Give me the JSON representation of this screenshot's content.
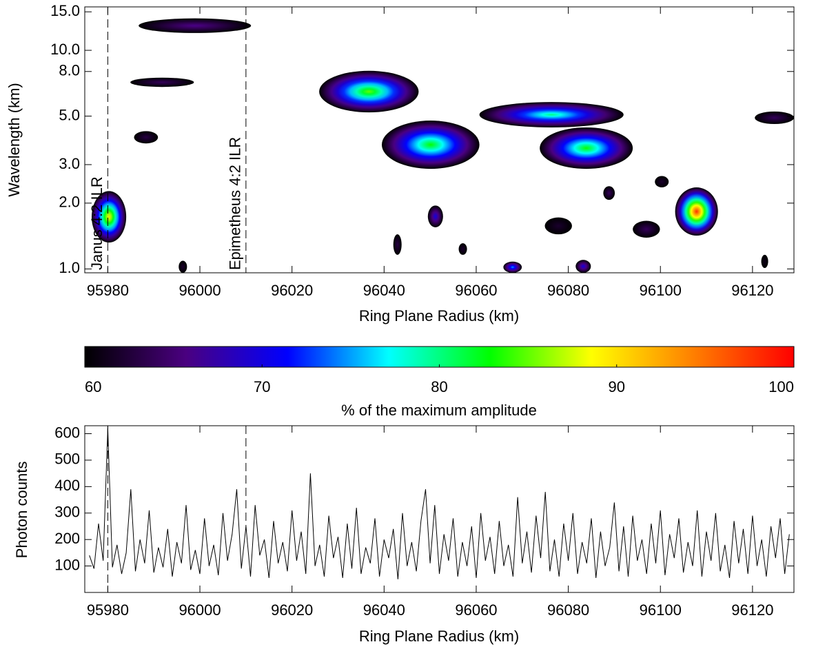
{
  "chart_data": [
    {
      "type": "contour",
      "xlabel": "Ring Plane Radius (km)",
      "ylabel": "Wavelength (km)",
      "xlim": [
        95975,
        96129
      ],
      "xticks": [
        95980,
        96000,
        96020,
        96040,
        96060,
        96080,
        96100,
        96120
      ],
      "ylim": [
        0.96,
        15.8
      ],
      "log_y": true,
      "yticks": [
        {
          "value": 1,
          "label": "1.0"
        },
        {
          "value": 2,
          "label": "2.0"
        },
        {
          "value": 3,
          "label": "3.0"
        },
        {
          "value": 5,
          "label": "5.0"
        },
        {
          "value": 8,
          "label": "8.0"
        },
        {
          "value": 10,
          "label": "10.0"
        },
        {
          "value": 15,
          "label": "15.0"
        }
      ],
      "vlines": [
        {
          "x": 95980,
          "label": "Janus 4:2 ILR"
        },
        {
          "x": 96010,
          "label": "Epimetheus 4:2 ILR"
        }
      ],
      "regions": [
        {
          "x": [
            95986.7,
            96011.1
          ],
          "y": [
            12.0,
            14.0
          ],
          "peak": 66
        },
        {
          "x": [
            95984.9,
            95998.7
          ],
          "y": [
            6.8,
            7.5
          ],
          "peak": 64
        },
        {
          "x": [
            95985.7,
            95990.9
          ],
          "y": [
            3.75,
            4.27
          ],
          "peak": 63
        },
        {
          "x": [
            95976.5,
            95984.0
          ],
          "y": [
            1.32,
            2.27
          ],
          "peak": 90
        },
        {
          "x": [
            95995.4,
            95997.2
          ],
          "y": [
            0.96,
            1.09
          ],
          "peak": 62
        },
        {
          "x": [
            96025.9,
            96047.5
          ],
          "y": [
            5.2,
            8.06
          ],
          "peak": 85
        },
        {
          "x": [
            96039.5,
            96060.7
          ],
          "y": [
            2.87,
            4.77
          ],
          "peak": 83
        },
        {
          "x": [
            96060.7,
            96092.0
          ],
          "y": [
            4.44,
            5.8
          ],
          "peak": 80
        },
        {
          "x": [
            96073.8,
            96094.0
          ],
          "y": [
            2.87,
            4.44
          ],
          "peak": 83
        },
        {
          "x": [
            96120.5,
            96129.0
          ],
          "y": [
            4.6,
            5.25
          ],
          "peak": 64
        },
        {
          "x": [
            96103.2,
            96112.5
          ],
          "y": [
            1.42,
            2.36
          ],
          "peak": 98
        },
        {
          "x": [
            96049.5,
            96052.8
          ],
          "y": [
            1.55,
            1.95
          ],
          "peak": 70
        },
        {
          "x": [
            96042.0,
            96043.8
          ],
          "y": [
            1.16,
            1.44
          ],
          "peak": 63
        },
        {
          "x": [
            96056.2,
            96058.0
          ],
          "y": [
            1.16,
            1.31
          ],
          "peak": 62
        },
        {
          "x": [
            96065.9,
            96069.9
          ],
          "y": [
            0.96,
            1.08
          ],
          "peak": 75
        },
        {
          "x": [
            96081.6,
            96084.9
          ],
          "y": [
            0.96,
            1.1
          ],
          "peak": 70
        },
        {
          "x": [
            96074.9,
            96080.8
          ],
          "y": [
            1.44,
            1.72
          ],
          "peak": 62
        },
        {
          "x": [
            96087.6,
            96090.1
          ],
          "y": [
            2.07,
            2.39
          ],
          "peak": 64
        },
        {
          "x": [
            96094.0,
            96099.9
          ],
          "y": [
            1.39,
            1.66
          ],
          "peak": 64
        },
        {
          "x": [
            96098.8,
            96101.8
          ],
          "y": [
            2.36,
            2.66
          ],
          "peak": 62
        },
        {
          "x": [
            96121.9,
            96123.4
          ],
          "y": [
            1.01,
            1.16
          ],
          "peak": 61
        }
      ],
      "colorbar": {
        "zlim": [
          60,
          100
        ],
        "zticks": [
          60,
          70,
          80,
          90,
          100
        ],
        "zlabel": "% of the maximum amplitude",
        "colormap": [
          "#000000",
          "#4a0080",
          "#0000ff",
          "#00ffff",
          "#00ff00",
          "#ffff00",
          "#ff8000",
          "#ff0000"
        ]
      }
    },
    {
      "type": "line",
      "color": "#000000",
      "xlabel": "Ring Plane Radius (km)",
      "ylabel": "Photon counts",
      "xlim": [
        95975,
        96129
      ],
      "xticks": [
        95980,
        96000,
        96020,
        96040,
        96060,
        96080,
        96100,
        96120
      ],
      "ylim": [
        0,
        630
      ],
      "yticks": [
        100,
        200,
        300,
        400,
        500,
        600
      ],
      "vlines": [
        95980,
        96010
      ],
      "x": [
        95976,
        95977,
        95978,
        95979,
        95980,
        95981,
        95982,
        95983,
        95984,
        95985,
        95986,
        95987,
        95988,
        95989,
        95990,
        95991,
        95992,
        95993,
        95994,
        95995,
        95996,
        95997,
        95998,
        95999,
        96000,
        96001,
        96002,
        96003,
        96004,
        96005,
        96006,
        96007,
        96008,
        96009,
        96010,
        96011,
        96012,
        96013,
        96014,
        96015,
        96016,
        96017,
        96018,
        96019,
        96020,
        96021,
        96022,
        96023,
        96024,
        96025,
        96026,
        96027,
        96028,
        96029,
        96030,
        96031,
        96032,
        96033,
        96034,
        96035,
        96036,
        96037,
        96038,
        96039,
        96040,
        96041,
        96042,
        96043,
        96044,
        96045,
        96046,
        96047,
        96048,
        96049,
        96050,
        96051,
        96052,
        96053,
        96054,
        96055,
        96056,
        96057,
        96058,
        96059,
        96060,
        96061,
        96062,
        96063,
        96064,
        96065,
        96066,
        96067,
        96068,
        96069,
        96070,
        96071,
        96072,
        96073,
        96074,
        96075,
        96076,
        96077,
        96078,
        96079,
        96080,
        96081,
        96082,
        96083,
        96084,
        96085,
        96086,
        96087,
        96088,
        96089,
        96090,
        96091,
        96092,
        96093,
        96094,
        96095,
        96096,
        96097,
        96098,
        96099,
        96100,
        96101,
        96102,
        96103,
        96104,
        96105,
        96106,
        96107,
        96108,
        96109,
        96110,
        96111,
        96112,
        96113,
        96114,
        96115,
        96116,
        96117,
        96118,
        96119,
        96120,
        96121,
        96122,
        96123,
        96124,
        96125,
        96126,
        96127,
        96128
      ],
      "values": [
        140,
        90,
        260,
        120,
        620,
        95,
        180,
        70,
        150,
        390,
        80,
        200,
        110,
        310,
        75,
        170,
        95,
        240,
        60,
        190,
        110,
        330,
        85,
        160,
        70,
        280,
        100,
        180,
        65,
        300,
        120,
        220,
        390,
        90,
        250,
        60,
        330,
        140,
        200,
        55,
        270,
        110,
        190,
        80,
        310,
        120,
        230,
        70,
        450,
        100,
        180,
        60,
        290,
        130,
        210,
        55,
        260,
        90,
        320,
        70,
        170,
        110,
        280,
        60,
        200,
        130,
        240,
        50,
        300,
        100,
        190,
        80,
        270,
        390,
        110,
        330,
        70,
        220,
        120,
        280,
        60,
        190,
        100,
        250,
        55,
        300,
        120,
        210,
        70,
        270,
        100,
        180,
        60,
        360,
        110,
        230,
        75,
        290,
        130,
        380,
        80,
        200,
        60,
        260,
        120,
        300,
        70,
        190,
        110,
        280,
        55,
        230,
        100,
        170,
        340,
        80,
        250,
        60,
        290,
        120,
        200,
        70,
        260,
        110,
        310,
        65,
        220,
        130,
        280,
        75,
        190,
        100,
        310,
        60,
        230,
        120,
        300,
        80,
        180,
        55,
        270,
        110,
        240,
        70,
        290,
        100,
        200,
        60,
        250,
        130,
        280,
        70,
        220
      ]
    }
  ]
}
